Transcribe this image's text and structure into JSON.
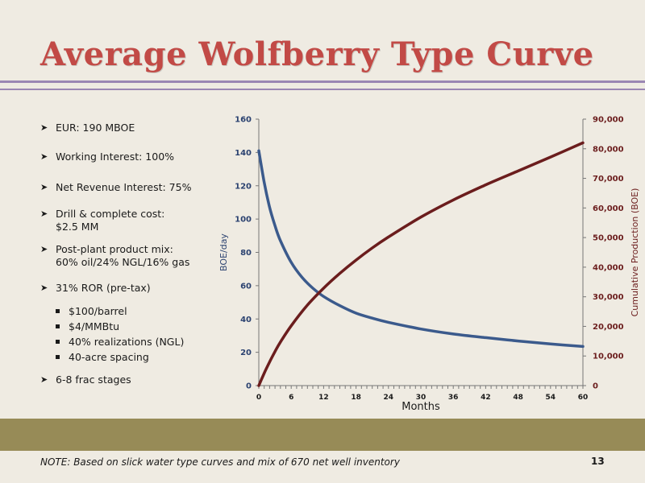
{
  "slide": {
    "title": "Average Wolfberry Type Curve",
    "note": "NOTE: Based on slick water type curves and mix of 670 net well inventory",
    "page_number": "13"
  },
  "bullets": [
    {
      "lines": [
        "EUR: 190 MBOE"
      ]
    },
    {
      "lines": [
        "Working Interest: 100%"
      ]
    },
    {
      "lines": [
        "Net Revenue Interest: 75%"
      ]
    },
    {
      "lines": [
        "Drill & complete cost:",
        "$2.5 MM"
      ]
    },
    {
      "lines": [
        "Post-plant product mix:",
        "60% oil/24% NGL/16% gas"
      ]
    },
    {
      "lines": [
        "31% ROR (pre-tax)"
      ]
    },
    {
      "lines": [
        "6-8 frac stages"
      ]
    }
  ],
  "sub_bullets": [
    "$100/barrel",
    "$4/MMBtu",
    "40% realizations (NGL)",
    "40-acre spacing"
  ],
  "colors": {
    "title": "#c24a46",
    "rate_series": "#3b5a8c",
    "cumulative_series": "#6b1d1d",
    "band": "#978b57",
    "rule": "#9b87b3"
  },
  "chart_data": {
    "type": "line",
    "xlabel": "Months",
    "ylabel": "BOE/day",
    "y2label": "Cumulative Production (BOE)",
    "xlim": [
      0,
      60
    ],
    "ylim": [
      0,
      160
    ],
    "y2lim": [
      0,
      90000
    ],
    "x_ticks": [
      "0",
      "6",
      "12",
      "18",
      "24",
      "30",
      "36",
      "42",
      "48",
      "54",
      "60"
    ],
    "y_ticks": [
      "0",
      "20",
      "40",
      "60",
      "80",
      "100",
      "120",
      "140",
      "160"
    ],
    "y2_ticks": [
      "0",
      "10,000",
      "20,000",
      "30,000",
      "40,000",
      "50,000",
      "60,000",
      "70,000",
      "80,000",
      "90,000"
    ],
    "grid": false,
    "series": [
      {
        "axis": "left",
        "x": [
          0,
          1,
          2,
          3,
          4,
          6,
          8,
          10,
          12,
          15,
          18,
          21,
          24,
          30,
          36,
          42,
          48,
          54,
          60
        ],
        "values": [
          141,
          122,
          107,
          96,
          87,
          74,
          65,
          58.5,
          53.5,
          48,
          43.5,
          40.5,
          38,
          34,
          31,
          28.8,
          26.8,
          25,
          23.5
        ]
      },
      {
        "axis": "right",
        "x": [
          0,
          1,
          2,
          3,
          4,
          6,
          9,
          12,
          15,
          18,
          21,
          24,
          30,
          36,
          42,
          48,
          54,
          60
        ],
        "values": [
          0,
          4200,
          8000,
          11500,
          14700,
          20200,
          27200,
          32900,
          37900,
          42400,
          46500,
          50200,
          56900,
          62700,
          67800,
          72500,
          77200,
          82000
        ]
      }
    ]
  }
}
